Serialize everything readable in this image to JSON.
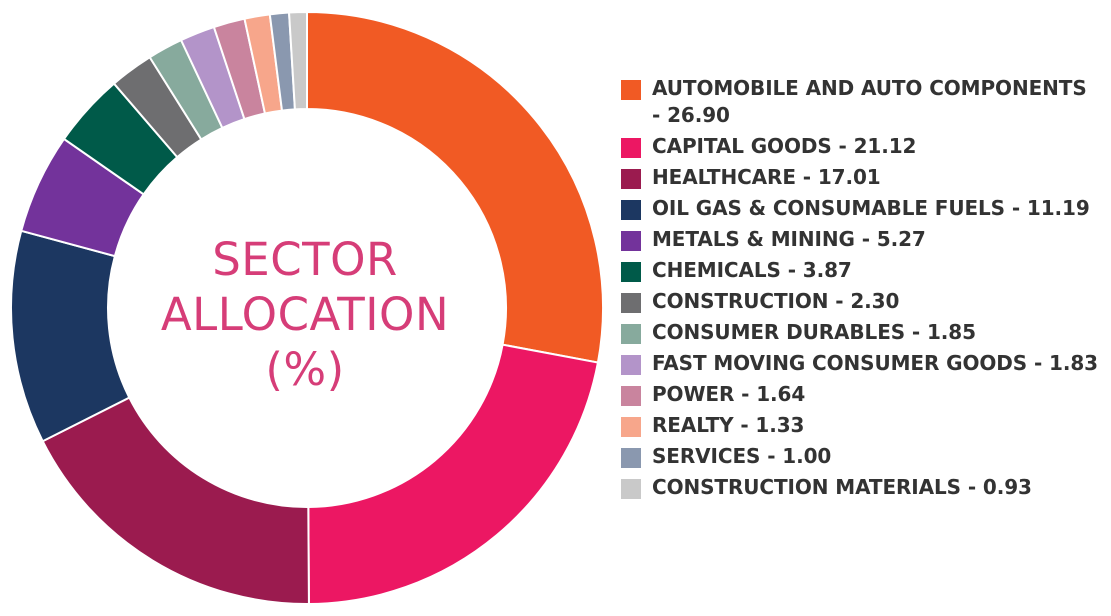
{
  "chart_data": {
    "type": "pie",
    "title": "",
    "center_label": [
      "SECTOR",
      "ALLOCATION",
      "(%)"
    ],
    "center_label_color": "#d63d78",
    "legend_placement": "right",
    "slices": [
      {
        "label": "AUTOMOBILE AND AUTO COMPONENTS - 26.90",
        "value": 26.9,
        "color": "#f15a24"
      },
      {
        "label": "CAPITAL GOODS - 21.12",
        "value": 21.12,
        "color": "#ec1763"
      },
      {
        "label": "HEALTHCARE - 17.01",
        "value": 17.01,
        "color": "#9b1b4f"
      },
      {
        "label": "OIL GAS & CONSUMABLE FUELS - 11.19",
        "value": 11.19,
        "color": "#1c3761"
      },
      {
        "label": "METALS & MINING - 5.27",
        "value": 5.27,
        "color": "#73339b"
      },
      {
        "label": "CHEMICALS - 3.87",
        "value": 3.87,
        "color": "#005a49"
      },
      {
        "label": "CONSTRUCTION - 2.30",
        "value": 2.3,
        "color": "#6e6e70"
      },
      {
        "label": "CONSUMER DURABLES - 1.85",
        "value": 1.85,
        "color": "#87aa9d"
      },
      {
        "label": "FAST MOVING CONSUMER GOODS - 1.83",
        "value": 1.83,
        "color": "#b394c9"
      },
      {
        "label": "POWER - 1.64",
        "value": 1.64,
        "color": "#c9849e"
      },
      {
        "label": "REALTY - 1.33",
        "value": 1.33,
        "color": "#f7a68b"
      },
      {
        "label": "SERVICES - 1.00",
        "value": 1.0,
        "color": "#8a98af"
      },
      {
        "label": "CONSTRUCTION MATERIALS - 0.93",
        "value": 0.93,
        "color": "#c9c9c9"
      }
    ]
  }
}
